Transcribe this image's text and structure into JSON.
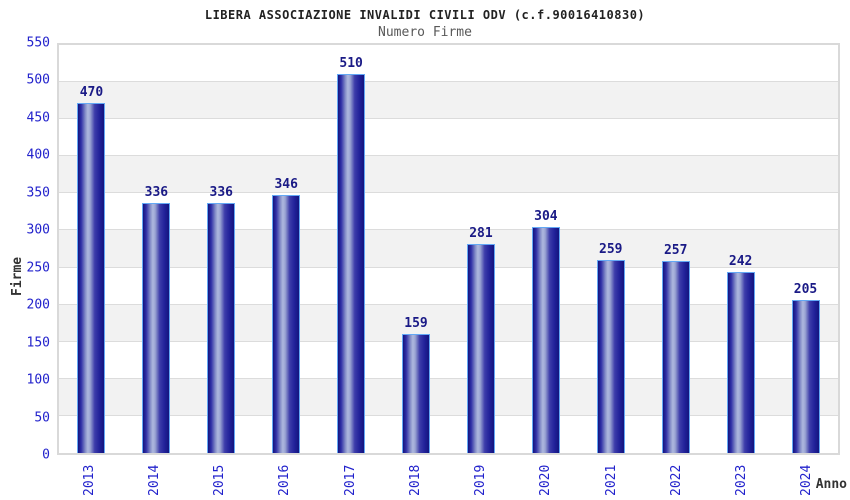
{
  "header": {
    "title": "LIBERA ASSOCIAZIONE INVALIDI CIVILI ODV (c.f.90016410830)",
    "subtitle": "Numero Firme"
  },
  "chart_data": {
    "type": "bar",
    "title": "LIBERA ASSOCIAZIONE INVALIDI CIVILI ODV (c.f.90016410830)",
    "subtitle": "Numero Firme",
    "xlabel": "Anno",
    "ylabel": "Firme",
    "categories": [
      "2013",
      "2014",
      "2015",
      "2016",
      "2017",
      "2018",
      "2019",
      "2020",
      "2021",
      "2022",
      "2023",
      "2024"
    ],
    "values": [
      470,
      336,
      336,
      346,
      510,
      159,
      281,
      304,
      259,
      257,
      242,
      205
    ],
    "ylim": [
      0,
      550
    ],
    "ytick_step": 50,
    "grid": "horizontal alternating bands with gridlines",
    "legend": "none",
    "colors": {
      "bar_dark": "#14147e",
      "bar_mid": "#2e2ea6",
      "bar_highlight": "#aeb8de",
      "bar_border": "#63a8f5",
      "value_label": "#1a1a86",
      "tick_label": "#2222cc",
      "band_fill": "#f2f2f2",
      "gridline": "#dcdcdc",
      "axis_title": "#333333",
      "subtitle_text": "#595959",
      "title_text": "#222222"
    }
  }
}
